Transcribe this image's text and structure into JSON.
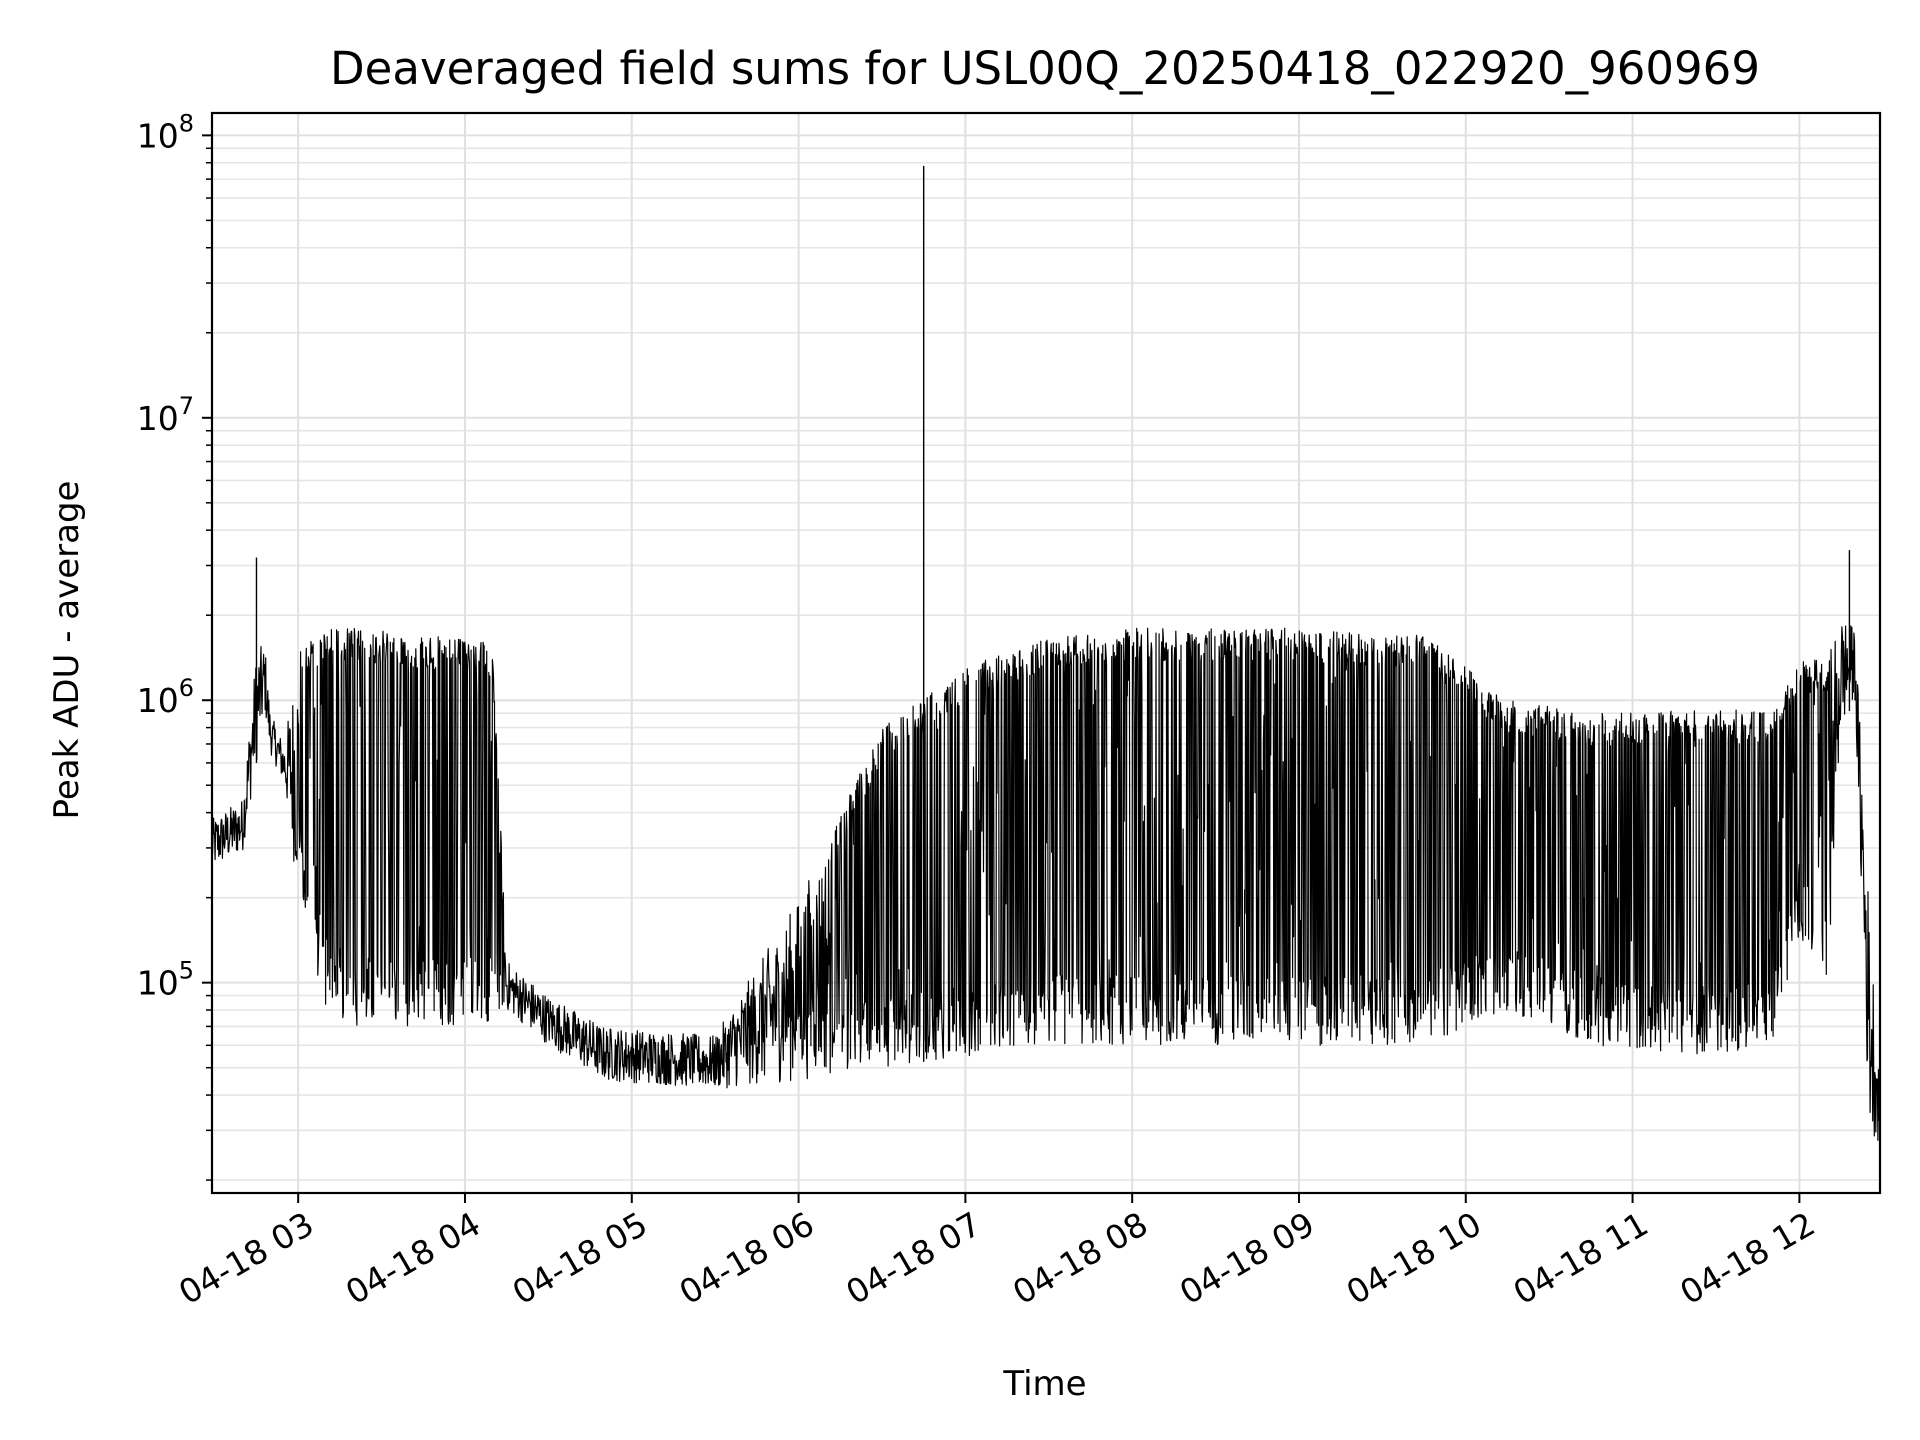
{
  "chart_data": {
    "type": "line",
    "title": "Deaveraged field sums for USL00Q_20250418_022920_960969",
    "xlabel": "Time",
    "ylabel": "Peak ADU - average",
    "y_scale": "log",
    "grid": true,
    "xlim": [
      "2025-04-18 02:29",
      "2025-04-18 12:29"
    ],
    "ylim": [
      18000,
      120000000
    ],
    "x_ticks": [
      {
        "value": "2025-04-18 03:00",
        "label": "04-18 03"
      },
      {
        "value": "2025-04-18 04:00",
        "label": "04-18 04"
      },
      {
        "value": "2025-04-18 05:00",
        "label": "04-18 05"
      },
      {
        "value": "2025-04-18 06:00",
        "label": "04-18 06"
      },
      {
        "value": "2025-04-18 07:00",
        "label": "04-18 07"
      },
      {
        "value": "2025-04-18 08:00",
        "label": "04-18 08"
      },
      {
        "value": "2025-04-18 09:00",
        "label": "04-18 09"
      },
      {
        "value": "2025-04-18 10:00",
        "label": "04-18 10"
      },
      {
        "value": "2025-04-18 11:00",
        "label": "04-18 11"
      },
      {
        "value": "2025-04-18 12:00",
        "label": "04-18 12"
      }
    ],
    "y_ticks": [
      {
        "value": 100000,
        "base": "10",
        "exp": "5"
      },
      {
        "value": 1000000,
        "base": "10",
        "exp": "6"
      },
      {
        "value": 10000000,
        "base": "10",
        "exp": "7"
      },
      {
        "value": 100000000,
        "base": "10",
        "exp": "8"
      }
    ],
    "series_color": "#000000",
    "series_envelope": [
      {
        "x": "2025-04-18 02:29",
        "low": 250000,
        "high": 380000
      },
      {
        "x": "2025-04-18 02:40",
        "low": 290000,
        "high": 450000
      },
      {
        "x": "2025-04-18 02:45",
        "low": 600000,
        "high": 1500000
      },
      {
        "x": "2025-04-18 02:48",
        "low": 900000,
        "high": 1600000
      },
      {
        "x": "2025-04-18 02:50",
        "low": 650000,
        "high": 900000
      },
      {
        "x": "2025-04-18 02:55",
        "low": 500000,
        "high": 700000
      },
      {
        "x": "2025-04-18 03:00",
        "low": 200000,
        "high": 1500000
      },
      {
        "x": "2025-04-18 03:10",
        "low": 80000,
        "high": 1800000
      },
      {
        "x": "2025-04-18 03:20",
        "low": 70000,
        "high": 1800000
      },
      {
        "x": "2025-04-18 03:45",
        "low": 70000,
        "high": 1700000
      },
      {
        "x": "2025-04-18 04:10",
        "low": 70000,
        "high": 1600000
      },
      {
        "x": "2025-04-18 04:15",
        "low": 80000,
        "high": 120000
      },
      {
        "x": "2025-04-18 04:30",
        "low": 60000,
        "high": 90000
      },
      {
        "x": "2025-04-18 04:50",
        "low": 45000,
        "high": 70000
      },
      {
        "x": "2025-04-18 05:30",
        "low": 42000,
        "high": 65000
      },
      {
        "x": "2025-04-18 06:00",
        "low": 45000,
        "high": 200000
      },
      {
        "x": "2025-04-18 06:30",
        "low": 50000,
        "high": 800000
      },
      {
        "x": "2025-04-18 07:00",
        "low": 55000,
        "high": 1300000
      },
      {
        "x": "2025-04-18 07:30",
        "low": 60000,
        "high": 1700000
      },
      {
        "x": "2025-04-18 08:00",
        "low": 60000,
        "high": 1800000
      },
      {
        "x": "2025-04-18 09:00",
        "low": 60000,
        "high": 1800000
      },
      {
        "x": "2025-04-18 09:45",
        "low": 60000,
        "high": 1700000
      },
      {
        "x": "2025-04-18 10:15",
        "low": 80000,
        "high": 1000000
      },
      {
        "x": "2025-04-18 10:45",
        "low": 60000,
        "high": 900000
      },
      {
        "x": "2025-04-18 11:30",
        "low": 55000,
        "high": 950000
      },
      {
        "x": "2025-04-18 11:50",
        "low": 60000,
        "high": 900000
      },
      {
        "x": "2025-04-18 12:00",
        "low": 150000,
        "high": 1400000
      },
      {
        "x": "2025-04-18 12:10",
        "low": 90000,
        "high": 1400000
      },
      {
        "x": "2025-04-18 12:15",
        "low": 800000,
        "high": 2000000
      },
      {
        "x": "2025-04-18 12:20",
        "low": 1000000,
        "high": 1800000
      },
      {
        "x": "2025-04-18 12:25",
        "low": 30000,
        "high": 200000
      },
      {
        "x": "2025-04-18 12:29",
        "low": 27000,
        "high": 45000
      }
    ],
    "spikes": [
      {
        "x": "2025-04-18 02:45",
        "y": 3200000
      },
      {
        "x": "2025-04-18 06:45",
        "y": 78000000
      },
      {
        "x": "2025-04-18 12:18",
        "y": 3400000
      }
    ]
  }
}
